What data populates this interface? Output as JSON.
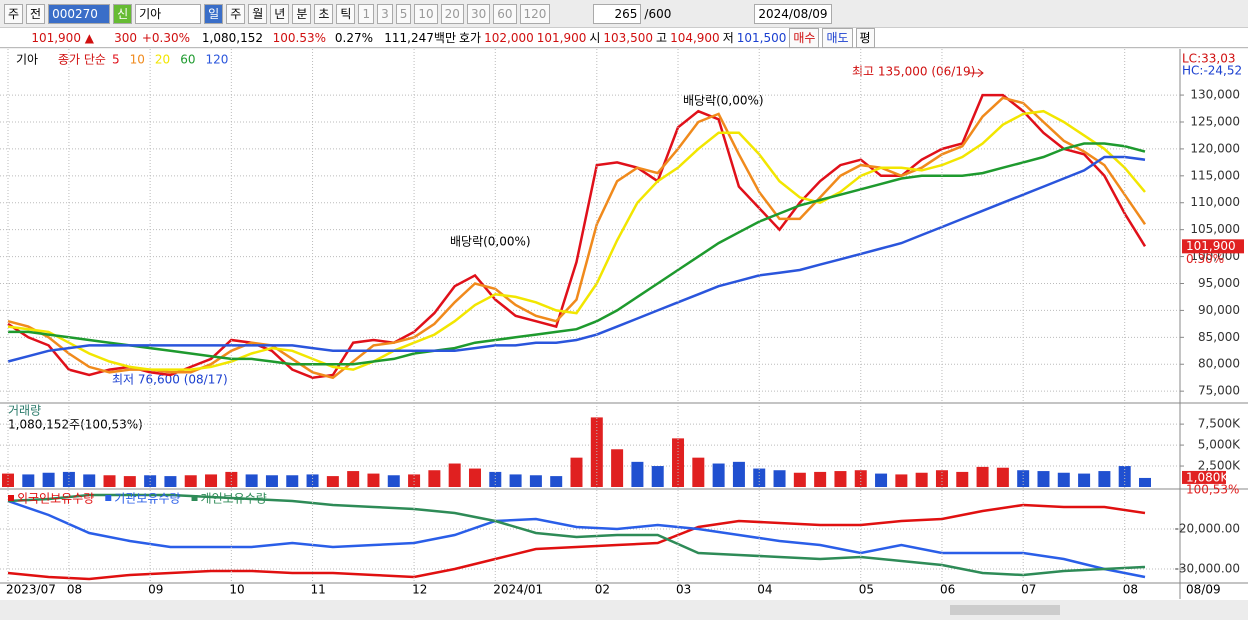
{
  "toolbar": {
    "items": [
      "주",
      "전",
      "000270",
      "신",
      "기아",
      "일",
      "주",
      "월",
      "년",
      "분",
      "초",
      "틱",
      "1",
      "3",
      "5",
      "10",
      "20",
      "30",
      "60",
      "120",
      "265",
      "/600",
      "2024/08/09"
    ]
  },
  "quote_bar": {
    "price": "101,900 ▲",
    "change": "300",
    "change_pct": "+0.30%",
    "volume": "1,080,152",
    "volume_ratio": "100.53%",
    "turnover": "0.27%",
    "amount": "111,247백만",
    "ask_label": "호가",
    "ask": "102,000",
    "bid": "101,900",
    "open_label": "시",
    "open": "103,500",
    "high_label": "고",
    "high": "104,900",
    "low_label": "저",
    "low": "101,500",
    "buy": "매수",
    "sell": "매도",
    "avg": "평"
  },
  "legend": {
    "stock": "기아",
    "ma_label": "종가 단순"
  },
  "annotations": {
    "high": "최고 135,000 (06/19)",
    "low": "최저 76,600 (08/17)",
    "dividend_1": "배당락(0,00%)",
    "dividend_2": "배당락(0,00%)",
    "lc": "LC:33,03",
    "hc": "HC:-24,52",
    "last_price": "101,900",
    "last_pct": "0.30%",
    "vol_title": "거래량",
    "vol_info": "1,080,152주(100,53%)",
    "last_vol": "1,080K",
    "last_vol_pct": "100,53%",
    "end_date": "08/09"
  },
  "chart_data": [
    {
      "type": "line",
      "categories": [
        "2023/07",
        null,
        null,
        "08",
        null,
        null,
        null,
        "09",
        null,
        null,
        null,
        "10",
        null,
        null,
        null,
        "11",
        null,
        null,
        null,
        null,
        "12",
        null,
        null,
        null,
        "2024/01",
        null,
        null,
        null,
        null,
        "02",
        null,
        null,
        null,
        "03",
        null,
        null,
        null,
        "04",
        null,
        null,
        null,
        null,
        "05",
        null,
        null,
        null,
        "06",
        null,
        null,
        null,
        "07",
        null,
        null,
        null,
        null,
        "08",
        null
      ],
      "ylim": [
        72800,
        138000
      ],
      "yticks": [
        {
          "value": 75000,
          "label": "75,000"
        },
        {
          "value": 80000,
          "label": "80,000"
        },
        {
          "value": 85000,
          "label": "85,000"
        },
        {
          "value": 90000,
          "label": "90,000"
        },
        {
          "value": 95000,
          "label": "95,000"
        },
        {
          "value": 100000,
          "label": "100,000"
        },
        {
          "value": 105000,
          "label": "105,000"
        },
        {
          "value": 110000,
          "label": "110,000"
        },
        {
          "value": 115000,
          "label": "115,000"
        },
        {
          "value": 120000,
          "label": "120,000"
        },
        {
          "value": 125000,
          "label": "125,000"
        },
        {
          "value": 130000,
          "label": "130,000"
        }
      ],
      "grid": true,
      "series": [
        {
          "name": "5",
          "color": "#e0101a",
          "values": [
            87500,
            85000,
            83500,
            79000,
            78000,
            79000,
            79500,
            78500,
            78000,
            79500,
            81000,
            84500,
            84000,
            82500,
            79000,
            77500,
            78000,
            84000,
            84500,
            84000,
            86000,
            89500,
            94500,
            96500,
            92000,
            89000,
            88000,
            87000,
            99000,
            117000,
            117500,
            116500,
            114000,
            124000,
            127000,
            125500,
            113000,
            109000,
            105000,
            110000,
            114000,
            117000,
            118000,
            115000,
            115000,
            118000,
            120000,
            121000,
            130000,
            130000,
            127000,
            123000,
            120000,
            119000,
            115000,
            108000,
            101900
          ]
        },
        {
          "name": "10",
          "color": "#f08a1c",
          "values": [
            88000,
            87000,
            85000,
            82000,
            79500,
            78500,
            79000,
            79000,
            78500,
            78500,
            80000,
            82500,
            84000,
            83500,
            81000,
            78500,
            77500,
            80500,
            83500,
            84000,
            85000,
            87500,
            91500,
            95000,
            94000,
            91000,
            89000,
            88000,
            92000,
            106000,
            114000,
            116500,
            115500,
            120000,
            125000,
            126500,
            119000,
            112000,
            107000,
            107000,
            111000,
            115000,
            117000,
            116500,
            115000,
            116500,
            119000,
            120500,
            126000,
            129500,
            128500,
            125000,
            121500,
            119500,
            117000,
            111500,
            106000
          ]
        },
        {
          "name": "20",
          "color": "#f2e600",
          "values": [
            87000,
            86500,
            86000,
            84000,
            82000,
            80500,
            79500,
            79000,
            79000,
            79000,
            79500,
            80500,
            82000,
            83000,
            82500,
            81000,
            79500,
            79000,
            80500,
            82500,
            84000,
            85500,
            88000,
            91000,
            93000,
            92500,
            91500,
            90000,
            89500,
            95000,
            103000,
            110000,
            114000,
            116500,
            120000,
            123000,
            123000,
            119000,
            114000,
            111000,
            110000,
            112000,
            115000,
            116500,
            116500,
            116000,
            117000,
            118500,
            121000,
            124500,
            126500,
            127000,
            125000,
            122500,
            120000,
            116500,
            112000
          ]
        },
        {
          "name": "60",
          "color": "#1e9a2e",
          "values": [
            86000,
            86000,
            85500,
            85000,
            84500,
            84000,
            83500,
            83000,
            82500,
            82000,
            81500,
            81000,
            81000,
            80500,
            80000,
            80000,
            80000,
            80000,
            80500,
            81000,
            82000,
            82500,
            83000,
            84000,
            84500,
            85000,
            85500,
            86000,
            86500,
            88000,
            90000,
            92500,
            95000,
            97500,
            100000,
            102500,
            104500,
            106500,
            108000,
            109500,
            110500,
            111500,
            112500,
            113500,
            114500,
            115000,
            115000,
            115000,
            115500,
            116500,
            117500,
            118500,
            120000,
            121000,
            121000,
            120500,
            119500
          ]
        },
        {
          "name": "120",
          "color": "#2a55dc",
          "values": [
            80500,
            81500,
            82500,
            83000,
            83500,
            83500,
            83500,
            83500,
            83500,
            83500,
            83500,
            83500,
            83500,
            83500,
            83500,
            83000,
            82500,
            82500,
            82500,
            82500,
            82500,
            82500,
            82500,
            83000,
            83500,
            83500,
            84000,
            84000,
            84500,
            85500,
            87000,
            88500,
            90000,
            91500,
            93000,
            94500,
            95500,
            96500,
            97000,
            97500,
            98500,
            99500,
            100500,
            101500,
            102500,
            104000,
            105500,
            107000,
            108500,
            110000,
            111500,
            113000,
            114500,
            116000,
            118500,
            118500,
            118000
          ]
        }
      ]
    },
    {
      "type": "bar",
      "ylim": [
        0,
        9900
      ],
      "yticks": [
        {
          "value": 2500,
          "label": "2,500K"
        },
        {
          "value": 5000,
          "label": "5,000K"
        },
        {
          "value": 7500,
          "label": "7,500K"
        }
      ],
      "grid": true,
      "up_color": "#e02020",
      "down_color": "#2050d0",
      "values": [
        1600,
        1500,
        1700,
        1800,
        1500,
        1400,
        1300,
        1400,
        1300,
        1400,
        1500,
        1800,
        1500,
        1400,
        1400,
        1500,
        1300,
        1900,
        1600,
        1400,
        1500,
        2000,
        2800,
        2200,
        1800,
        1500,
        1400,
        1300,
        3500,
        8300,
        4500,
        3000,
        2500,
        5800,
        3500,
        2800,
        3000,
        2200,
        2000,
        1700,
        1800,
        1900,
        2000,
        1600,
        1500,
        1700,
        2000,
        1800,
        2400,
        2300,
        2000,
        1900,
        1700,
        1600,
        1900,
        2500,
        1080
      ]
    },
    {
      "type": "line",
      "ylim": [
        -33500,
        -10750
      ],
      "yticks": [
        {
          "value": -20000,
          "label": "-20,000.00"
        },
        {
          "value": -30000,
          "label": "-30,000.00"
        }
      ],
      "grid": true,
      "series": [
        {
          "name": "외국인보유수량",
          "color": "#e01010",
          "values": [
            -31000,
            -32000,
            -32500,
            -31500,
            -31000,
            -30500,
            -30500,
            -31000,
            -31000,
            -31500,
            -32000,
            -30000,
            -27500,
            -25000,
            -24500,
            -24000,
            -23500,
            -19500,
            -18000,
            -18500,
            -19000,
            -19000,
            -18000,
            -17500,
            -15500,
            -14000,
            -14500,
            -14500,
            -16000
          ]
        },
        {
          "name": "기관보유수량",
          "color": "#2a5ee8",
          "values": [
            -13000,
            -16500,
            -21000,
            -23000,
            -24500,
            -24500,
            -24500,
            -23500,
            -24500,
            -24000,
            -23500,
            -21500,
            -18000,
            -17500,
            -19500,
            -20000,
            -19000,
            -20000,
            -21500,
            -23000,
            -24000,
            -26000,
            -24000,
            -26000,
            -26000,
            -26000,
            -27500,
            -30000,
            -32000
          ]
        },
        {
          "name": "개인보유수량",
          "color": "#2e8b57",
          "values": [
            -13000,
            -12500,
            -11500,
            -11500,
            -11500,
            -12000,
            -12500,
            -13000,
            -14000,
            -14500,
            -15000,
            -16000,
            -18000,
            -21000,
            -22000,
            -21500,
            -21500,
            -26000,
            -26500,
            -27000,
            -27500,
            -27000,
            -28000,
            -29000,
            -31000,
            -31500,
            -30500,
            -30000,
            -29500
          ]
        }
      ]
    }
  ]
}
